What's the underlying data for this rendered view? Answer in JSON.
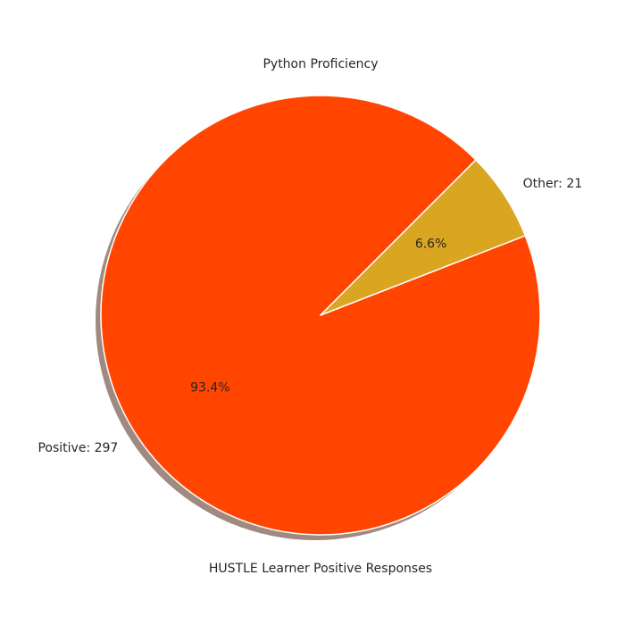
{
  "chart_data": {
    "type": "pie",
    "title": "Python Proficiency",
    "xlabel": "HUSTLE Learner Positive Responses",
    "slices": [
      {
        "label": "Positive: 297",
        "value": 297,
        "pct_label": "93.4%",
        "color": "#FF4500"
      },
      {
        "label": "Other: 21",
        "value": 21,
        "pct_label": "6.6%",
        "color": "#DAA520"
      }
    ],
    "start_angle_deg": 45,
    "shadow": true,
    "shadow_color": "#A08A80",
    "edge_color": "#FFFFFF"
  }
}
